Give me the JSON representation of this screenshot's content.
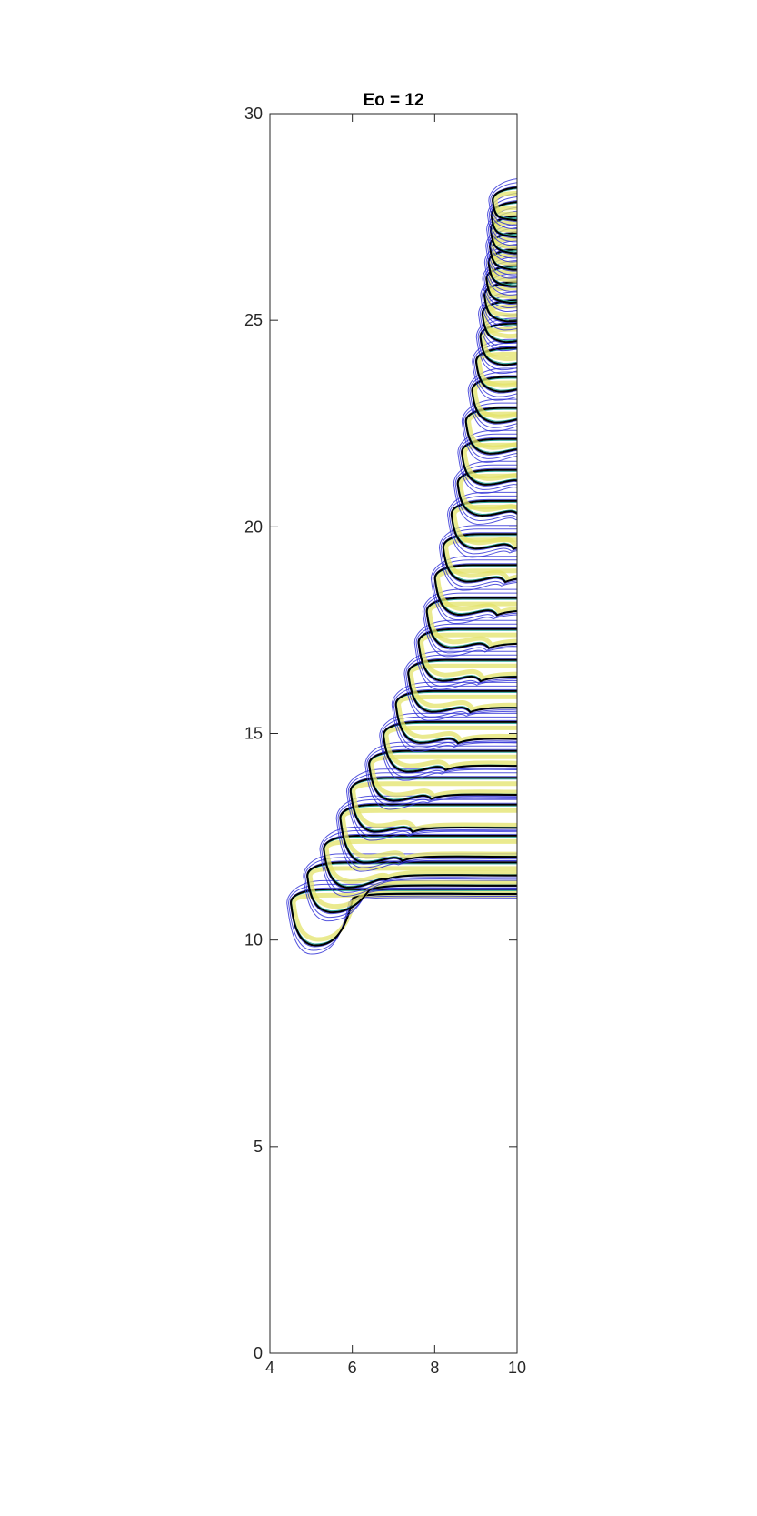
{
  "chart_data": {
    "type": "contour",
    "title": "Eo = 12",
    "xlabel": "",
    "ylabel": "",
    "xlim": [
      4,
      10
    ],
    "ylim": [
      0,
      30
    ],
    "x_ticks": [
      4,
      6,
      8,
      10
    ],
    "x_tick_labels": [
      "4",
      "6",
      "8",
      "10"
    ],
    "y_ticks": [
      0,
      5,
      10,
      15,
      20,
      25,
      30
    ],
    "y_tick_labels": [
      "0",
      "5",
      "10",
      "15",
      "20",
      "25",
      "30"
    ],
    "grid": false,
    "legend": "none",
    "colors": {
      "outer_contour": "#2b2bd6",
      "inner_fill_contour": "#e3e36a",
      "mid_contour": "#2fa89a",
      "interface": "#000000",
      "axis": "#262626"
    },
    "snapshots": [
      {
        "tip_x": 4.55,
        "tip_y": 10.9,
        "bottom_y": 9.95,
        "attach_y": 11.15
      },
      {
        "tip_x": 4.95,
        "tip_y": 11.55,
        "bottom_y": 10.75,
        "attach_y": 11.35
      },
      {
        "tip_x": 5.35,
        "tip_y": 12.2,
        "bottom_y": 11.35,
        "attach_y": 11.6
      },
      {
        "tip_x": 5.75,
        "tip_y": 12.95,
        "bottom_y": 11.95,
        "attach_y": 12.05
      },
      {
        "tip_x": 6.0,
        "tip_y": 13.6,
        "bottom_y": 12.7,
        "attach_y": 12.75
      },
      {
        "tip_x": 6.45,
        "tip_y": 14.25,
        "bottom_y": 13.45,
        "attach_y": 13.55
      },
      {
        "tip_x": 6.8,
        "tip_y": 14.95,
        "bottom_y": 14.15,
        "attach_y": 14.25
      },
      {
        "tip_x": 7.1,
        "tip_y": 15.7,
        "bottom_y": 14.85,
        "attach_y": 14.9
      },
      {
        "tip_x": 7.4,
        "tip_y": 16.45,
        "bottom_y": 15.6,
        "attach_y": 15.65
      },
      {
        "tip_x": 7.65,
        "tip_y": 17.2,
        "bottom_y": 16.35,
        "attach_y": 16.4
      },
      {
        "tip_x": 7.85,
        "tip_y": 17.95,
        "bottom_y": 17.15,
        "attach_y": 17.2
      },
      {
        "tip_x": 8.05,
        "tip_y": 18.75,
        "bottom_y": 17.95,
        "attach_y": 18.0
      },
      {
        "tip_x": 8.25,
        "tip_y": 19.5,
        "bottom_y": 18.75,
        "attach_y": 18.8
      },
      {
        "tip_x": 8.45,
        "tip_y": 20.3,
        "bottom_y": 19.55,
        "attach_y": 19.6
      },
      {
        "tip_x": 8.6,
        "tip_y": 21.05,
        "bottom_y": 20.35,
        "attach_y": 20.4
      },
      {
        "tip_x": 8.7,
        "tip_y": 21.8,
        "bottom_y": 21.1,
        "attach_y": 21.15
      },
      {
        "tip_x": 8.8,
        "tip_y": 22.55,
        "bottom_y": 21.85,
        "attach_y": 21.9
      },
      {
        "tip_x": 8.95,
        "tip_y": 23.3,
        "bottom_y": 22.6,
        "attach_y": 22.65
      },
      {
        "tip_x": 9.05,
        "tip_y": 24.0,
        "bottom_y": 23.35,
        "attach_y": 23.4
      },
      {
        "tip_x": 9.15,
        "tip_y": 24.6,
        "bottom_y": 24.0,
        "attach_y": 24.05
      },
      {
        "tip_x": 9.2,
        "tip_y": 25.15,
        "bottom_y": 24.55,
        "attach_y": 24.6
      },
      {
        "tip_x": 9.25,
        "tip_y": 25.6,
        "bottom_y": 25.05,
        "attach_y": 25.1
      },
      {
        "tip_x": 9.3,
        "tip_y": 26.0,
        "bottom_y": 25.5,
        "attach_y": 25.55
      },
      {
        "tip_x": 9.35,
        "tip_y": 26.4,
        "bottom_y": 25.9,
        "attach_y": 25.95
      },
      {
        "tip_x": 9.38,
        "tip_y": 26.8,
        "bottom_y": 26.3,
        "attach_y": 26.35
      },
      {
        "tip_x": 9.4,
        "tip_y": 27.2,
        "bottom_y": 26.7,
        "attach_y": 26.75
      },
      {
        "tip_x": 9.42,
        "tip_y": 27.55,
        "bottom_y": 27.1,
        "attach_y": 27.15
      },
      {
        "tip_x": 9.45,
        "tip_y": 27.9,
        "bottom_y": 27.5,
        "attach_y": 27.55
      }
    ]
  }
}
